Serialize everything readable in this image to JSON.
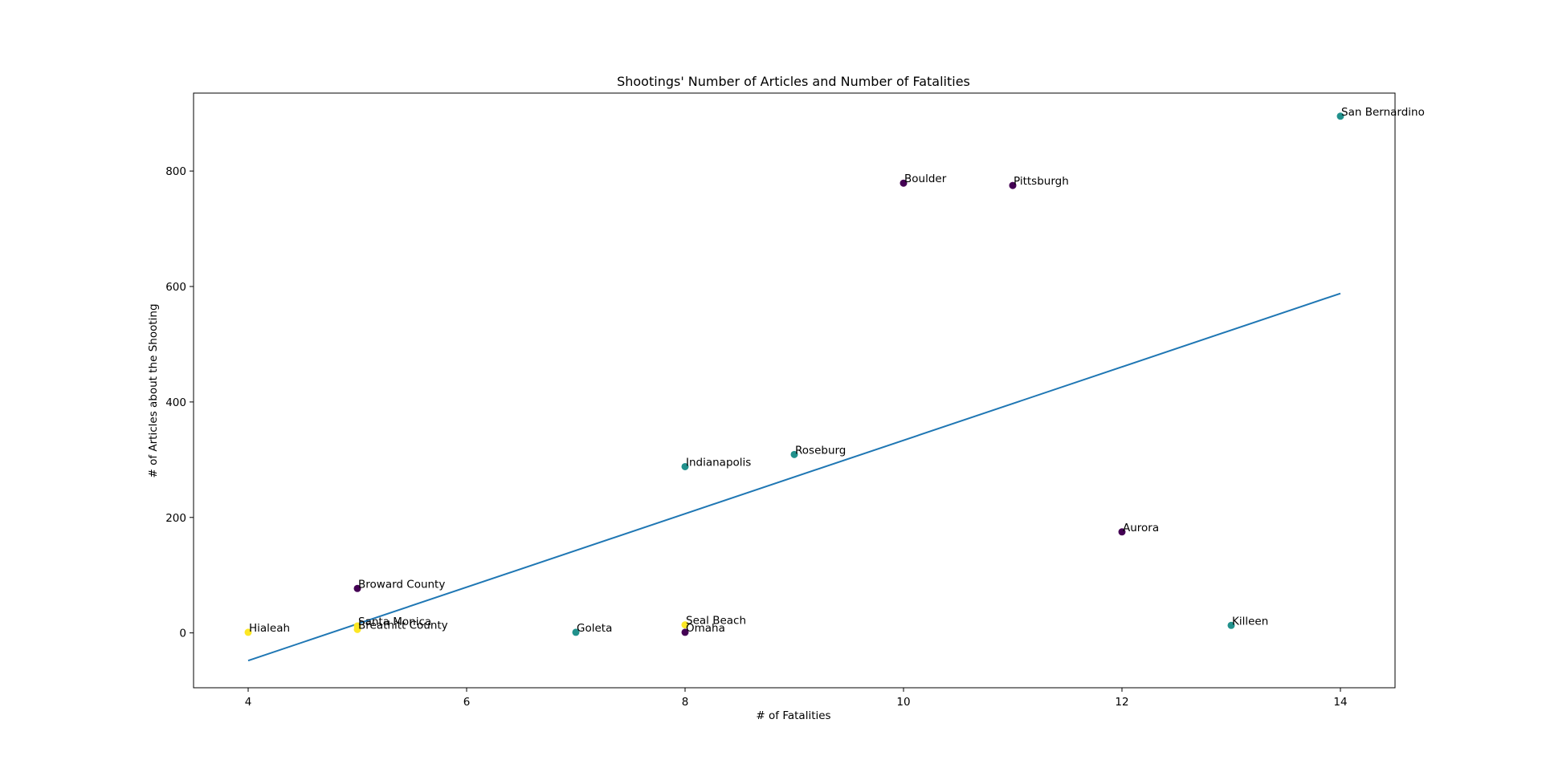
{
  "chart_data": {
    "type": "scatter",
    "title": "Shootings' Number of Articles and Number of Fatalities",
    "xlabel": "# of Fatalities",
    "ylabel": "# of Articles about the Shooting",
    "xlim": [
      3.5,
      14.5
    ],
    "ylim": [
      -95,
      935
    ],
    "xticks": [
      4,
      6,
      8,
      10,
      12,
      14
    ],
    "yticks": [
      0,
      200,
      400,
      600,
      800
    ],
    "grid": false,
    "colors": {
      "purple": "#440154",
      "teal": "#21918c",
      "yellow": "#fde725",
      "line": "#1f77b4"
    },
    "points": [
      {
        "label": "San Bernardino",
        "x": 14,
        "y": 895,
        "color": "teal"
      },
      {
        "label": "Boulder",
        "x": 10,
        "y": 779,
        "color": "purple"
      },
      {
        "label": "Pittsburgh",
        "x": 11,
        "y": 775,
        "color": "purple"
      },
      {
        "label": "Roseburg",
        "x": 9,
        "y": 309,
        "color": "teal"
      },
      {
        "label": "Indianapolis",
        "x": 8,
        "y": 288,
        "color": "teal"
      },
      {
        "label": "Aurora",
        "x": 12,
        "y": 175,
        "color": "purple"
      },
      {
        "label": "Broward County",
        "x": 5,
        "y": 77,
        "color": "purple"
      },
      {
        "label": "Seal Beach",
        "x": 8,
        "y": 14,
        "color": "yellow"
      },
      {
        "label": "Killeen",
        "x": 13,
        "y": 13,
        "color": "teal"
      },
      {
        "label": "Santa Monica",
        "x": 5,
        "y": 12,
        "color": "yellow"
      },
      {
        "label": "Breathitt County",
        "x": 5,
        "y": 6,
        "color": "yellow"
      },
      {
        "label": "Hialeah",
        "x": 4,
        "y": 1,
        "color": "yellow"
      },
      {
        "label": "Goleta",
        "x": 7,
        "y": 1,
        "color": "teal"
      },
      {
        "label": "Omaha",
        "x": 8,
        "y": 1,
        "color": "purple"
      }
    ],
    "trendline": {
      "x": [
        4,
        14
      ],
      "y": [
        -48,
        588
      ]
    }
  }
}
